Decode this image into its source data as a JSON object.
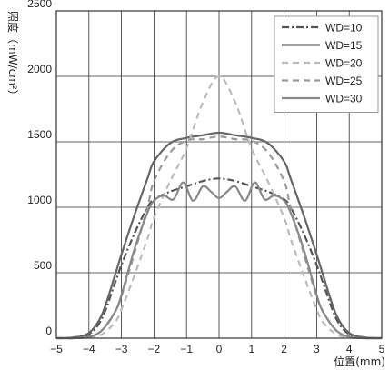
{
  "chart_data": {
    "type": "line",
    "title": "",
    "xlabel": "位置(mm)",
    "ylabel": "照度（mW/cm²）",
    "xlim": [
      -5,
      5
    ],
    "ylim": [
      0,
      2500
    ],
    "x_ticks": [
      -5,
      -4,
      -3,
      -2,
      -1,
      0,
      1,
      2,
      3,
      4,
      5
    ],
    "x_tick_labels": [
      "−5",
      "−4",
      "−3",
      "−2",
      "−1",
      "0",
      "1",
      "2",
      "3",
      "4",
      "5"
    ],
    "y_ticks": [
      0,
      500,
      1000,
      1500,
      2000,
      2500
    ],
    "y_tick_labels": [
      "0",
      "500",
      "1000",
      "1500",
      "2000",
      "2500"
    ],
    "grid": true,
    "legend_position": "top-right",
    "series": [
      {
        "name": "WD=10",
        "color": "#555555",
        "dash": "dashdot",
        "x": [
          -5,
          -4.5,
          -4,
          -3.6,
          -3.2,
          -3,
          -2.6,
          -2.2,
          -2,
          -1.5,
          -1,
          -0.5,
          0,
          0.5,
          1,
          1.5,
          2,
          2.2,
          2.6,
          3,
          3.2,
          3.6,
          4,
          4.5,
          5
        ],
        "y": [
          0,
          5,
          30,
          150,
          420,
          560,
          800,
          1000,
          1060,
          1120,
          1160,
          1200,
          1220,
          1200,
          1160,
          1120,
          1060,
          1000,
          800,
          560,
          420,
          150,
          30,
          5,
          0
        ]
      },
      {
        "name": "WD=15",
        "color": "#666666",
        "dash": "solid",
        "x": [
          -5,
          -4.5,
          -4,
          -3.6,
          -3.2,
          -3,
          -2.6,
          -2.2,
          -2,
          -1.5,
          -1,
          -0.5,
          0,
          0.5,
          1,
          1.5,
          2,
          2.2,
          2.6,
          3,
          3.2,
          3.6,
          4,
          4.5,
          5
        ],
        "y": [
          0,
          5,
          40,
          180,
          480,
          640,
          940,
          1220,
          1350,
          1490,
          1530,
          1550,
          1570,
          1550,
          1530,
          1490,
          1350,
          1220,
          940,
          640,
          480,
          180,
          40,
          5,
          0
        ]
      },
      {
        "name": "WD=20",
        "color": "#bbbbbb",
        "dash": "dash",
        "x": [
          -5,
          -4.5,
          -4,
          -3.6,
          -3.2,
          -3,
          -2.6,
          -2.2,
          -2,
          -1.5,
          -1,
          -0.5,
          0,
          0.5,
          1,
          1.5,
          2,
          2.2,
          2.6,
          3,
          3.2,
          3.6,
          4,
          4.5,
          5
        ],
        "y": [
          0,
          0,
          5,
          30,
          120,
          220,
          480,
          760,
          920,
          1200,
          1450,
          1800,
          2000,
          1800,
          1450,
          1200,
          920,
          760,
          480,
          220,
          120,
          30,
          5,
          0,
          0
        ]
      },
      {
        "name": "WD=25",
        "color": "#999999",
        "dash": "dash",
        "x": [
          -5,
          -4.5,
          -4,
          -3.6,
          -3.2,
          -3,
          -2.6,
          -2.2,
          -2,
          -1.5,
          -1,
          -0.5,
          0,
          0.5,
          1,
          1.5,
          2,
          2.2,
          2.6,
          3,
          3.2,
          3.6,
          4,
          4.5,
          5
        ],
        "y": [
          0,
          0,
          10,
          60,
          200,
          320,
          650,
          1000,
          1200,
          1420,
          1510,
          1520,
          1540,
          1520,
          1510,
          1420,
          1200,
          1000,
          650,
          320,
          200,
          60,
          10,
          0,
          0
        ]
      },
      {
        "name": "WD=30",
        "color": "#888888",
        "dash": "solid",
        "x": [
          -5,
          -4.5,
          -4,
          -3.6,
          -3.2,
          -3,
          -2.6,
          -2.2,
          -2,
          -1.7,
          -1.4,
          -1.1,
          -0.8,
          -0.5,
          -0.25,
          0,
          0.25,
          0.5,
          0.8,
          1.1,
          1.4,
          1.7,
          2,
          2.2,
          2.6,
          3,
          3.2,
          3.6,
          4,
          4.5,
          5
        ],
        "y": [
          0,
          0,
          10,
          60,
          200,
          330,
          680,
          960,
          1050,
          1090,
          1060,
          1190,
          1050,
          1160,
          1120,
          1070,
          1120,
          1160,
          1050,
          1190,
          1060,
          1090,
          1050,
          960,
          680,
          330,
          200,
          60,
          10,
          0,
          0
        ]
      }
    ]
  }
}
